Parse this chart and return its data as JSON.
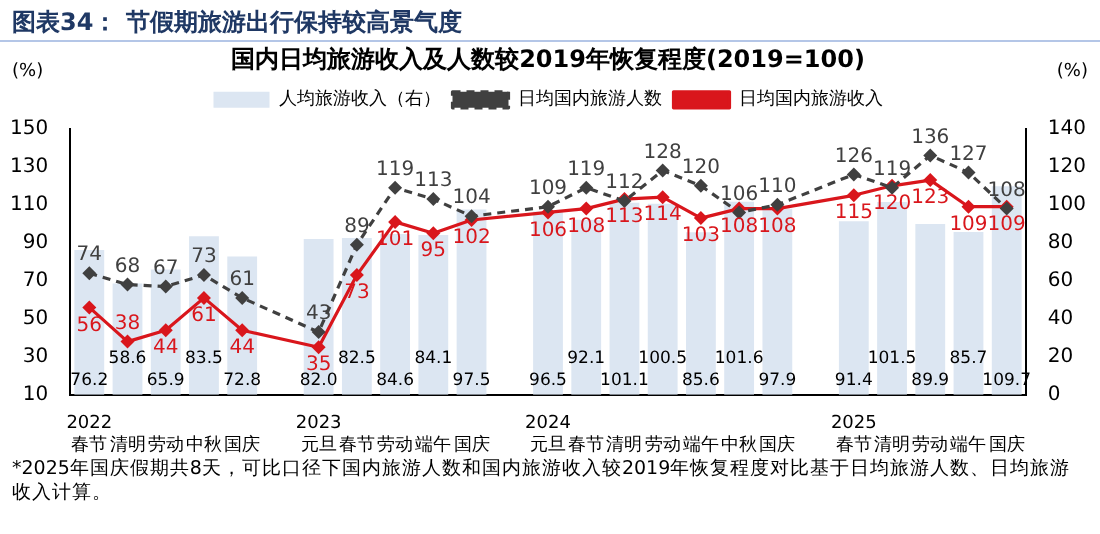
{
  "chart_data": {
    "type": "bar",
    "title": "图表34： 节假期旅游出行保持较高景气度",
    "subtitle": "国内日均旅游收入及人数较2019年恢复程度(2019=100)",
    "ylabel": "(%)",
    "y2label": "(%)",
    "categories": [
      "2022\n春节",
      "清明",
      "劳动",
      "中秋",
      "国庆",
      null,
      "2023\n元旦",
      "春节",
      "劳动",
      "端午",
      "国庆",
      null,
      "2024\n元旦",
      "春节",
      "清明",
      "劳动",
      "端午",
      "中秋",
      "国庆",
      null,
      "2025\n春节",
      "清明",
      "劳动",
      "端午",
      "国庆"
    ],
    "series": [
      {
        "name": "人均旅游收入（右）",
        "type": "bar",
        "axis": "y2",
        "color": "#dce6f2",
        "values": [
          76.2,
          58.6,
          65.9,
          83.5,
          72.8,
          null,
          82.0,
          82.5,
          84.6,
          84.1,
          97.5,
          null,
          96.5,
          92.1,
          101.1,
          100.5,
          85.6,
          101.6,
          97.9,
          null,
          91.4,
          101.5,
          89.9,
          85.7,
          109.7
        ],
        "value_labels": [
          "76.2",
          "58.6",
          "65.9",
          "83.5",
          "72.8",
          null,
          "82.0",
          "82.5",
          "84.6",
          "84.1",
          "97.5",
          null,
          "96.5",
          "92.1",
          "101.1",
          "100.5",
          "85.6",
          "101.6",
          "97.9",
          null,
          "91.4",
          "101.5",
          "89.9",
          "85.7",
          "109.7"
        ]
      },
      {
        "name": "日均国内旅游人数",
        "type": "line",
        "color": "#404040",
        "line_style": "dashed",
        "marker": "diamond",
        "values": [
          74,
          68,
          67,
          73,
          61,
          null,
          43,
          89,
          119,
          113,
          104,
          null,
          109,
          119,
          112,
          128,
          120,
          106,
          110,
          null,
          126,
          119,
          136,
          127,
          108
        ]
      },
      {
        "name": "日均国内旅游收入",
        "type": "line",
        "color": "#d9161c",
        "line_style": "solid",
        "marker": "diamond",
        "values": [
          56,
          38,
          44,
          61,
          44,
          null,
          35,
          73,
          101,
          95,
          102,
          null,
          106,
          108,
          113,
          114,
          103,
          108,
          108,
          null,
          115,
          120,
          123,
          109,
          109
        ]
      }
    ],
    "ylim": [
      10,
      150
    ],
    "yticks": [
      10,
      30,
      50,
      70,
      90,
      110,
      130,
      150
    ],
    "y2lim": [
      0,
      140
    ],
    "y2ticks": [
      0,
      20,
      40,
      60,
      80,
      100,
      120,
      140
    ],
    "data_labels": true,
    "grid": false,
    "legend": "top",
    "annotations": [
      "*2025年国庆假期共8天，可比口径下国内旅游人数和国内旅游收入较2019年恢复程度对比基于日均旅游人数、日均旅游收入计算。"
    ]
  }
}
